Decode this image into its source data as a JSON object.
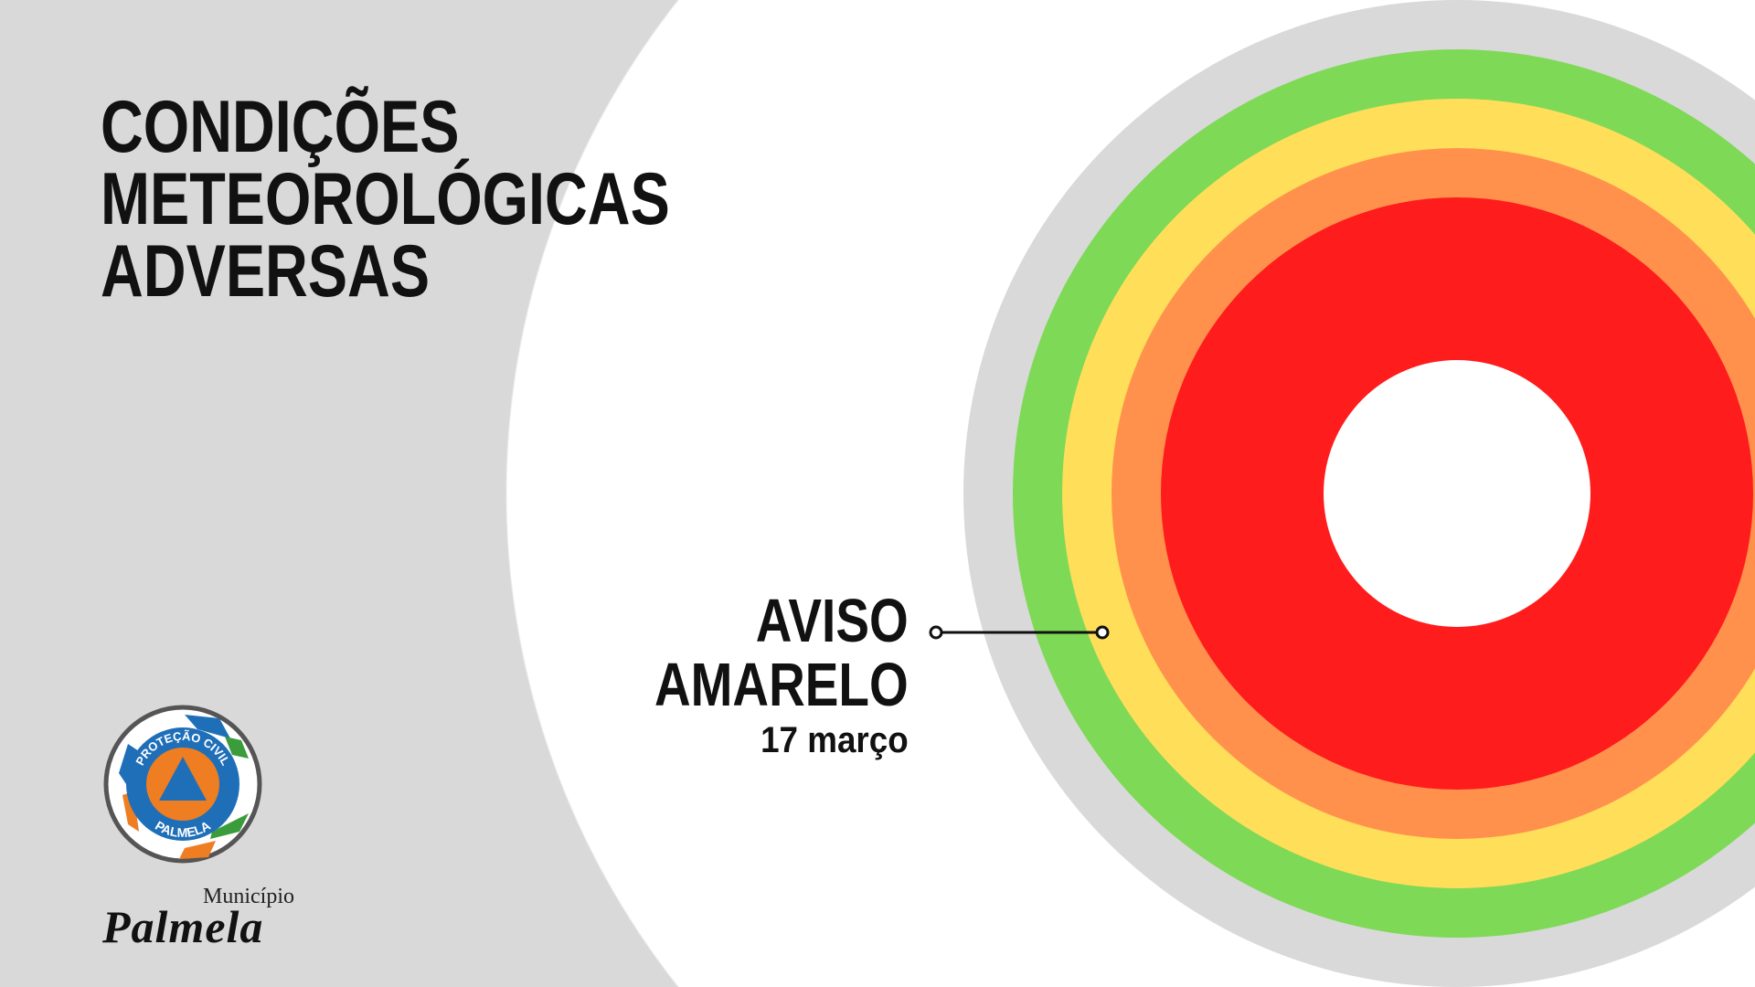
{
  "title": {
    "lines": [
      "CONDIÇÕES",
      "METEOROLÓGICAS",
      "ADVERSAS"
    ]
  },
  "warning": {
    "line1": "AVISO",
    "line2": "AMARELO",
    "date": "17 março",
    "level": "yellow"
  },
  "warning_scale": {
    "colors": {
      "outer": "#d9d9d9",
      "green": "#7ed957",
      "yellow": "#ffde59",
      "orange": "#ff914d",
      "red": "#ff1c1c"
    }
  },
  "logos": {
    "civil_protection": {
      "top_text": "PROTEÇÃO CIVIL",
      "bottom_text": "PALMELA"
    },
    "municipality": {
      "small": "Município",
      "name": "Palmela"
    }
  }
}
